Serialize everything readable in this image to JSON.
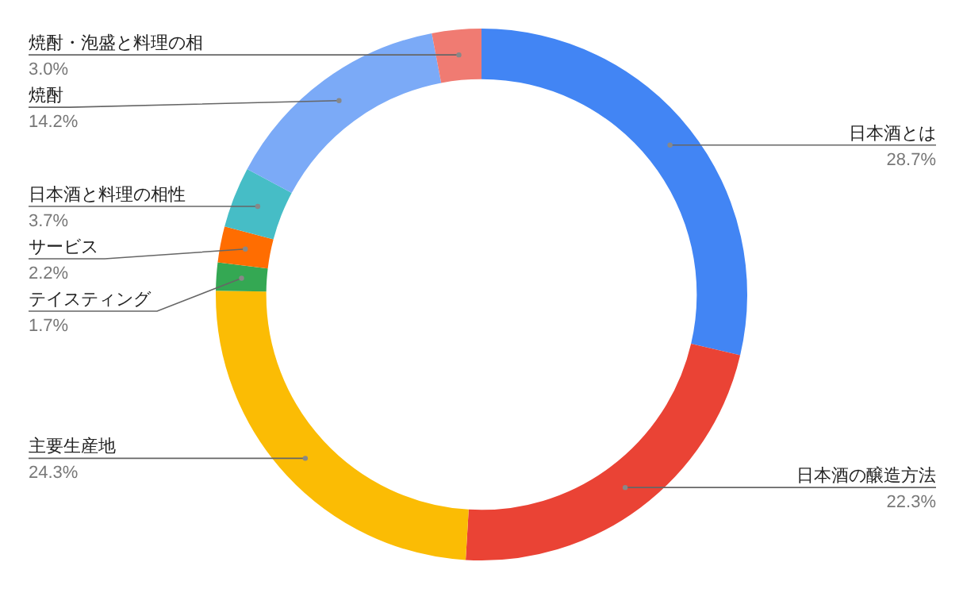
{
  "chart_data": {
    "type": "donut",
    "categories": [
      "日本酒とは",
      "日本酒の醸造方法",
      "主要生産地",
      "テイスティング",
      "サービス",
      "日本酒と料理の相性",
      "焼酎",
      "焼酎・泡盛と料理の相"
    ],
    "values": [
      28.7,
      22.3,
      24.3,
      1.7,
      2.2,
      3.7,
      14.2,
      3.0
    ],
    "value_labels": [
      "28.7%",
      "22.3%",
      "24.3%",
      "1.7%",
      "2.2%",
      "3.7%",
      "14.2%",
      "3.0%"
    ],
    "colors": [
      "#4285f4",
      "#ea4335",
      "#fbbc04",
      "#34a853",
      "#ff6d01",
      "#46bdc6",
      "#7baaf7",
      "#f07b72"
    ],
    "legend": false
  }
}
